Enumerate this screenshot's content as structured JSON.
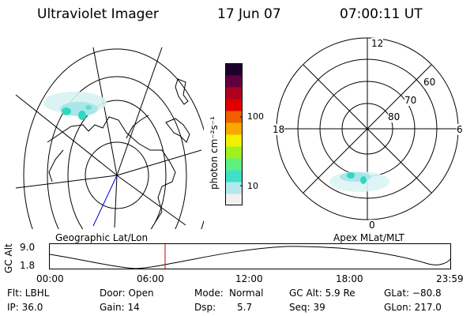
{
  "header": {
    "title": "Ultraviolet Imager",
    "date": "17 Jun 07",
    "time": "07:00:11 UT"
  },
  "colorbar": {
    "label": "photon cm⁻²s⁻¹",
    "tick_100": "100",
    "tick_10": "10",
    "colors": [
      "#f0f0f0",
      "#b0e8ec",
      "#40e0c8",
      "#60f080",
      "#a0f020",
      "#f0f000",
      "#f8a800",
      "#f06000",
      "#e00000",
      "#b00020",
      "#600040",
      "#200030"
    ]
  },
  "left_panel": {
    "label": "Geographic Lat/Lon"
  },
  "right_panel": {
    "label": "Apex MLat/MLT",
    "mlt_12": "12",
    "mlt_18": "18",
    "mlt_6": "6",
    "mlt_0": "0",
    "lat_60": "60",
    "lat_70": "70",
    "lat_80": "80"
  },
  "altitude_plot": {
    "ylabel": "GC Alt",
    "ymax_label": "9.0",
    "ymin_label": "1.8",
    "xticks": [
      "00:00",
      "06:00",
      "12:00",
      "18:00",
      "23:59"
    ],
    "current_time_color": "#cc0000"
  },
  "info": {
    "flt": "Flt: LBHL",
    "ip": "IP: 36.0",
    "door": "Door: Open",
    "gain": "Gain: 14",
    "mode_label": "Mode:",
    "mode_value": "Normal",
    "dsp_label": "Dsp:",
    "dsp_value": "5.7",
    "gcalt": "GC Alt: 5.9 Re",
    "seq": "Seq: 39",
    "glat": "GLat: −80.8",
    "glon": "GLon: 217.0"
  }
}
